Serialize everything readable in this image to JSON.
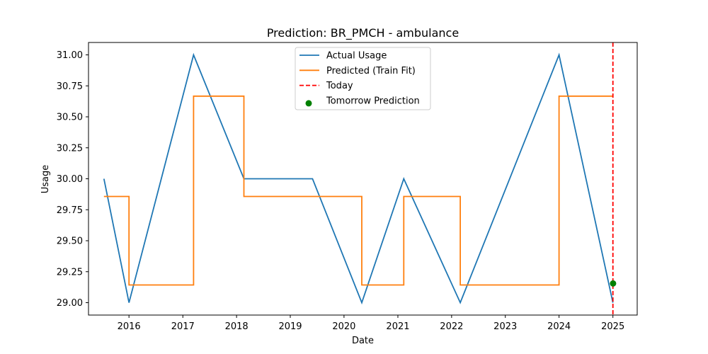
{
  "chart_data": {
    "type": "line",
    "title": "Prediction: BR_PMCH - ambulance",
    "xlabel": "Date",
    "ylabel": "Usage",
    "xlim": [
      "2015-04-01",
      "2025-06-15"
    ],
    "ylim": [
      28.9,
      31.1
    ],
    "x_ticks": [
      "2016",
      "2017",
      "2018",
      "2019",
      "2020",
      "2021",
      "2022",
      "2023",
      "2024",
      "2025"
    ],
    "y_ticks": [
      "29.00",
      "29.25",
      "29.50",
      "29.75",
      "30.00",
      "30.25",
      "30.50",
      "30.75",
      "31.00"
    ],
    "grid": false,
    "legend_position": "upper-center",
    "series": [
      {
        "name": "Actual Usage",
        "color": "#1f77b4",
        "style": "line",
        "points": [
          [
            "2015-07-15",
            30.0
          ],
          [
            "2016-01-01",
            29.0
          ],
          [
            "2017-03-15",
            31.0
          ],
          [
            "2018-02-20",
            30.0
          ],
          [
            "2019-06-01",
            30.0
          ],
          [
            "2020-05-01",
            29.0
          ],
          [
            "2021-02-10",
            30.0
          ],
          [
            "2022-03-01",
            29.0
          ],
          [
            "2024-01-01",
            31.0
          ],
          [
            "2025-01-01",
            29.0
          ]
        ]
      },
      {
        "name": "Predicted (Train Fit)",
        "color": "#ff7f0e",
        "style": "step",
        "points": [
          [
            "2015-07-15",
            29.857
          ],
          [
            "2016-01-01",
            29.857
          ],
          [
            "2016-01-01",
            29.143
          ],
          [
            "2017-03-15",
            29.143
          ],
          [
            "2017-03-15",
            30.667
          ],
          [
            "2018-02-20",
            30.667
          ],
          [
            "2018-02-20",
            29.857
          ],
          [
            "2020-05-01",
            29.857
          ],
          [
            "2020-05-01",
            29.143
          ],
          [
            "2021-02-10",
            29.143
          ],
          [
            "2021-02-10",
            29.857
          ],
          [
            "2022-03-01",
            29.857
          ],
          [
            "2022-03-01",
            29.143
          ],
          [
            "2024-01-01",
            29.143
          ],
          [
            "2024-01-01",
            30.667
          ],
          [
            "2025-01-01",
            30.667
          ]
        ]
      },
      {
        "name": "Today",
        "color": "#ff0000",
        "style": "vline-dashed",
        "x": "2025-01-01"
      },
      {
        "name": "Tomorrow Prediction",
        "color": "#008000",
        "style": "scatter",
        "points": [
          [
            "2025-01-02",
            29.155
          ]
        ]
      }
    ]
  }
}
